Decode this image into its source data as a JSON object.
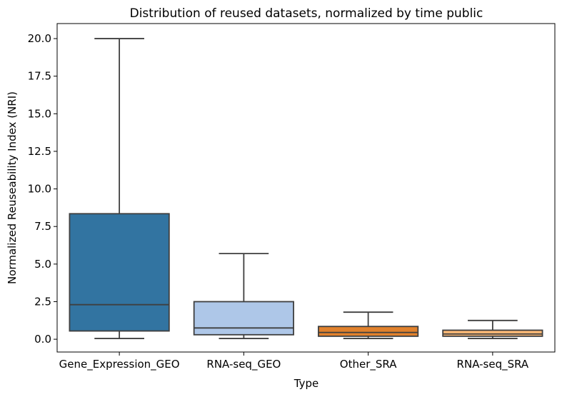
{
  "chart_data": {
    "type": "box",
    "title": "Distribution of reused datasets, normalized by time public",
    "xlabel": "Type",
    "ylabel": "Normalized Reuseability Index (NRI)",
    "ylim": [
      -0.85,
      21.0
    ],
    "yticks": [
      "0.0",
      "2.5",
      "5.0",
      "7.5",
      "10.0",
      "12.5",
      "15.0",
      "17.5",
      "20.0"
    ],
    "categories": [
      "Gene_Expression_GEO",
      "RNA-seq_GEO",
      "Other_SRA",
      "RNA-seq_SRA"
    ],
    "boxes": [
      {
        "category": "Gene_Expression_GEO",
        "whisker_low": 0.05,
        "q1": 0.55,
        "median": 2.3,
        "q3": 8.35,
        "whisker_high": 20.0,
        "color": "#3274a1"
      },
      {
        "category": "RNA-seq_GEO",
        "whisker_low": 0.05,
        "q1": 0.3,
        "median": 0.75,
        "q3": 2.5,
        "whisker_high": 5.7,
        "color": "#aec7e8"
      },
      {
        "category": "Other_SRA",
        "whisker_low": 0.05,
        "q1": 0.2,
        "median": 0.45,
        "q3": 0.85,
        "whisker_high": 1.8,
        "color": "#e1812c"
      },
      {
        "category": "RNA-seq_SRA",
        "whisker_low": 0.05,
        "q1": 0.2,
        "median": 0.35,
        "q3": 0.6,
        "whisker_high": 1.25,
        "color": "#ffbb78"
      }
    ],
    "grid": false,
    "legend": "none"
  }
}
